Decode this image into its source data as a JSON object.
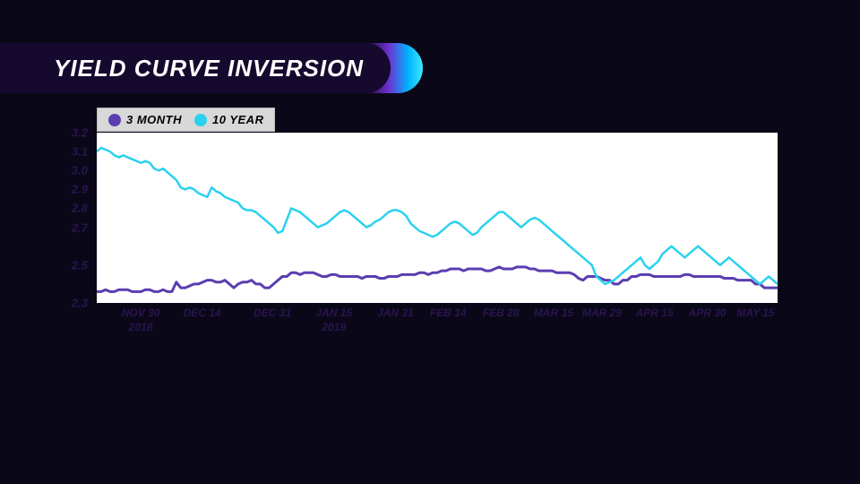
{
  "title": "YIELD CURVE INVERSION",
  "legend": {
    "bg": "#d8d8d8",
    "border": "#b8b8b8",
    "items": [
      {
        "label": "3 MONTH",
        "color": "#5a3eb0"
      },
      {
        "label": "10 YEAR",
        "color": "#2bd1ee"
      }
    ]
  },
  "chart": {
    "type": "line",
    "plot_bg": "#ffffff",
    "page_bg": "#0a0818",
    "axis_font_color": "#2a1450",
    "y": {
      "min": 2.3,
      "max": 3.2,
      "ticks": [
        "3.2",
        "3.1",
        "3.0",
        "2.9",
        "2.8",
        "2.7",
        "2.5",
        "2.3"
      ]
    },
    "x": {
      "min": 0,
      "max": 130,
      "ticks": [
        {
          "pos": 10,
          "label": "NOV 30",
          "year": "2018"
        },
        {
          "pos": 24,
          "label": "DEC 14"
        },
        {
          "pos": 40,
          "label": "DEC 31"
        },
        {
          "pos": 54,
          "label": "JAN 15",
          "year": "2019"
        },
        {
          "pos": 68,
          "label": "JAN 31"
        },
        {
          "pos": 80,
          "label": "FEB 14"
        },
        {
          "pos": 92,
          "label": "FEB 28"
        },
        {
          "pos": 104,
          "label": "MAR 15"
        },
        {
          "pos": 115,
          "label": "MAR 29"
        },
        {
          "pos": 127,
          "label": "APR 15"
        },
        {
          "pos": 139,
          "label": "APR 30"
        },
        {
          "pos": 150,
          "label": "MAY 15"
        }
      ],
      "domain_max": 155
    },
    "series": [
      {
        "name": "3 MONTH",
        "color": "#5a3eb0",
        "width": 3,
        "values": [
          2.36,
          2.36,
          2.37,
          2.36,
          2.36,
          2.37,
          2.37,
          2.37,
          2.36,
          2.36,
          2.36,
          2.37,
          2.37,
          2.36,
          2.36,
          2.37,
          2.36,
          2.36,
          2.41,
          2.38,
          2.38,
          2.39,
          2.4,
          2.4,
          2.41,
          2.42,
          2.42,
          2.41,
          2.41,
          2.42,
          2.4,
          2.38,
          2.4,
          2.41,
          2.41,
          2.42,
          2.4,
          2.4,
          2.38,
          2.38,
          2.4,
          2.42,
          2.44,
          2.44,
          2.46,
          2.46,
          2.45,
          2.46,
          2.46,
          2.46,
          2.45,
          2.44,
          2.44,
          2.45,
          2.45,
          2.44,
          2.44,
          2.44,
          2.44,
          2.44,
          2.43,
          2.44,
          2.44,
          2.44,
          2.43,
          2.43,
          2.44,
          2.44,
          2.44,
          2.45,
          2.45,
          2.45,
          2.45,
          2.46,
          2.46,
          2.45,
          2.46,
          2.46,
          2.47,
          2.47,
          2.48,
          2.48,
          2.48,
          2.47,
          2.48,
          2.48,
          2.48,
          2.48,
          2.47,
          2.47,
          2.48,
          2.49,
          2.48,
          2.48,
          2.48,
          2.49,
          2.49,
          2.49,
          2.48,
          2.48,
          2.47,
          2.47,
          2.47,
          2.47,
          2.46,
          2.46,
          2.46,
          2.46,
          2.45,
          2.43,
          2.42,
          2.44,
          2.44,
          2.44,
          2.43,
          2.42,
          2.42,
          2.4,
          2.4,
          2.42,
          2.42,
          2.44,
          2.44,
          2.45,
          2.45,
          2.45,
          2.44,
          2.44,
          2.44,
          2.44,
          2.44,
          2.44,
          2.44,
          2.45,
          2.45,
          2.44,
          2.44,
          2.44,
          2.44,
          2.44,
          2.44,
          2.44,
          2.43,
          2.43,
          2.43,
          2.42,
          2.42,
          2.42,
          2.42,
          2.4,
          2.4,
          2.38,
          2.38,
          2.38,
          2.38
        ]
      },
      {
        "name": "10 YEAR",
        "color": "#2bd1ee",
        "width": 2.5,
        "values": [
          3.1,
          3.12,
          3.11,
          3.1,
          3.08,
          3.07,
          3.08,
          3.07,
          3.06,
          3.05,
          3.04,
          3.05,
          3.04,
          3.01,
          3.0,
          3.01,
          2.99,
          2.97,
          2.95,
          2.91,
          2.9,
          2.91,
          2.9,
          2.88,
          2.87,
          2.86,
          2.91,
          2.89,
          2.88,
          2.86,
          2.85,
          2.84,
          2.83,
          2.8,
          2.79,
          2.79,
          2.78,
          2.76,
          2.74,
          2.72,
          2.7,
          2.67,
          2.68,
          2.74,
          2.8,
          2.79,
          2.78,
          2.76,
          2.74,
          2.72,
          2.7,
          2.71,
          2.72,
          2.74,
          2.76,
          2.78,
          2.79,
          2.78,
          2.76,
          2.74,
          2.72,
          2.7,
          2.71,
          2.73,
          2.74,
          2.76,
          2.78,
          2.79,
          2.79,
          2.78,
          2.76,
          2.72,
          2.7,
          2.68,
          2.67,
          2.66,
          2.65,
          2.66,
          2.68,
          2.7,
          2.72,
          2.73,
          2.72,
          2.7,
          2.68,
          2.66,
          2.67,
          2.7,
          2.72,
          2.74,
          2.76,
          2.78,
          2.78,
          2.76,
          2.74,
          2.72,
          2.7,
          2.72,
          2.74,
          2.75,
          2.74,
          2.72,
          2.7,
          2.68,
          2.66,
          2.64,
          2.62,
          2.6,
          2.58,
          2.56,
          2.54,
          2.52,
          2.5,
          2.44,
          2.42,
          2.4,
          2.41,
          2.42,
          2.44,
          2.46,
          2.48,
          2.5,
          2.52,
          2.54,
          2.5,
          2.48,
          2.5,
          2.52,
          2.56,
          2.58,
          2.6,
          2.58,
          2.56,
          2.54,
          2.56,
          2.58,
          2.6,
          2.58,
          2.56,
          2.54,
          2.52,
          2.5,
          2.52,
          2.54,
          2.52,
          2.5,
          2.48,
          2.46,
          2.44,
          2.42,
          2.4,
          2.42,
          2.44,
          2.42,
          2.4
        ]
      }
    ]
  }
}
